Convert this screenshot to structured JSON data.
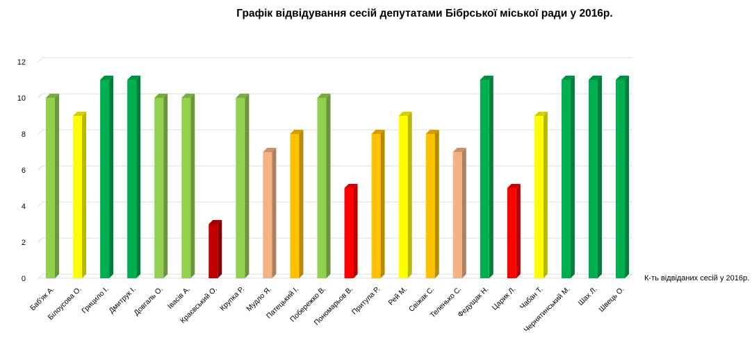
{
  "chart_data": {
    "type": "bar",
    "title": "Графік відвідування сесій депутатами Бібрської міської ради у 2016р.",
    "ylim": [
      0,
      12
    ],
    "yticks": [
      0,
      2,
      4,
      6,
      8,
      10,
      12
    ],
    "grid": true,
    "legend_position": "right",
    "series": [
      {
        "name": "К-ть відвіданих сесій у 2016р.",
        "values": [
          10,
          9,
          11,
          11,
          10,
          10,
          3,
          10,
          7,
          8,
          10,
          5,
          8,
          9,
          8,
          7,
          11,
          5,
          9,
          11,
          11,
          11
        ],
        "colors": [
          "#92d050",
          "#ffff00",
          "#00b050",
          "#00b050",
          "#92d050",
          "#92d050",
          "#c00000",
          "#92d050",
          "#f4b183",
          "#ffc000",
          "#92d050",
          "#ff0000",
          "#ffc000",
          "#ffff00",
          "#ffc000",
          "#f4b183",
          "#00b050",
          "#ff0000",
          "#ffff00",
          "#00b050",
          "#00b050",
          "#00b050"
        ]
      }
    ],
    "categories": [
      "Баб'як А.",
      "Білоусова О.",
      "Грицило І.",
      "Дмитрук І.",
      "Довгаль О.",
      "Івасів А.",
      "Краєвський О.",
      "Крупка Р.",
      "Мудло Я.",
      "Патецький І.",
      "Побережко В.",
      "Пономарьов В.",
      "Притула Р.",
      "Рей М.",
      "Свіжак С.",
      "Теленько С.",
      "Федущак Н.",
      "Царик Л.",
      "Чабан Т.",
      "Чернятинський М.",
      "Шах Л.",
      "Швець О."
    ]
  }
}
